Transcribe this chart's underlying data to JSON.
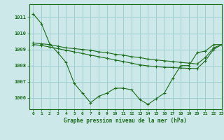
{
  "line1_x": [
    0,
    1,
    2,
    3,
    4,
    5,
    6,
    7,
    8,
    9,
    10,
    11,
    12,
    13,
    14,
    15,
    16,
    17,
    18,
    19,
    20,
    21,
    22,
    23
  ],
  "line1_y": [
    1011.2,
    1010.6,
    1009.35,
    1008.8,
    1008.2,
    1006.9,
    1006.3,
    1005.7,
    1006.1,
    1006.3,
    1006.6,
    1006.6,
    1006.5,
    1005.9,
    1005.6,
    1005.95,
    1006.3,
    1007.2,
    1008.0,
    1008.0,
    1008.8,
    1008.9,
    1009.3,
    1009.3
  ],
  "line2_x": [
    0,
    1,
    2,
    3,
    4,
    5,
    6,
    7,
    8,
    9,
    10,
    11,
    12,
    13,
    14,
    15,
    16,
    17,
    18,
    19,
    20,
    21,
    22,
    23
  ],
  "line2_y": [
    1009.4,
    1009.35,
    1009.3,
    1009.2,
    1009.1,
    1009.05,
    1009.0,
    1008.95,
    1008.85,
    1008.8,
    1008.7,
    1008.65,
    1008.55,
    1008.5,
    1008.4,
    1008.35,
    1008.3,
    1008.25,
    1008.2,
    1008.15,
    1008.1,
    1008.5,
    1009.1,
    1009.3
  ],
  "line3_x": [
    0,
    1,
    2,
    3,
    4,
    5,
    6,
    7,
    8,
    9,
    10,
    11,
    12,
    13,
    14,
    15,
    16,
    17,
    18,
    19,
    20,
    21,
    22,
    23
  ],
  "line3_y": [
    1009.3,
    1009.25,
    1009.15,
    1009.05,
    1008.95,
    1008.85,
    1008.75,
    1008.65,
    1008.55,
    1008.45,
    1008.35,
    1008.25,
    1008.15,
    1008.05,
    1007.98,
    1007.93,
    1007.9,
    1007.88,
    1007.85,
    1007.83,
    1007.82,
    1008.3,
    1009.0,
    1009.3
  ],
  "line_color": "#1a6b1a",
  "bg_color": "#cde8e8",
  "grid_color": "#9ecfcf",
  "xlabel": "Graphe pression niveau de la mer (hPa)",
  "ylim": [
    1005.3,
    1011.8
  ],
  "xlim": [
    -0.5,
    23
  ],
  "yticks": [
    1006,
    1007,
    1008,
    1009,
    1010,
    1011
  ],
  "xticks": [
    0,
    1,
    2,
    3,
    4,
    5,
    6,
    7,
    8,
    9,
    10,
    11,
    12,
    13,
    14,
    15,
    16,
    17,
    18,
    19,
    20,
    21,
    22,
    23
  ]
}
